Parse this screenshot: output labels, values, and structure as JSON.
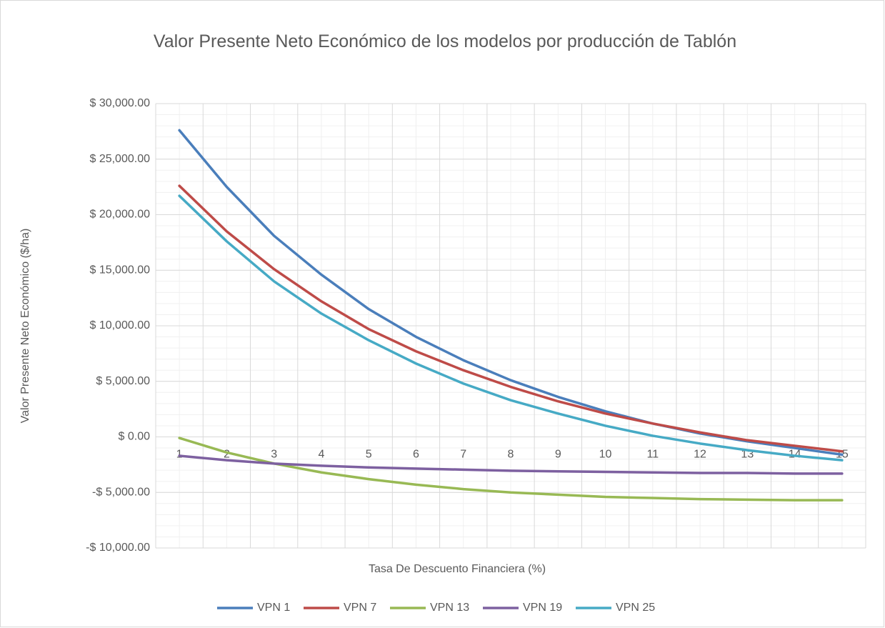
{
  "chart_data": {
    "type": "line",
    "title": "Valor Presente Neto Económico de los modelos por producción de Tablón",
    "x_label": "Tasa De Descuento Financiera (%)",
    "y_label": "Valor Presente Neto Económico ($/ha)",
    "categories": [
      "1",
      "2",
      "3",
      "4",
      "5",
      "6",
      "7",
      "8",
      "9",
      "10",
      "11",
      "12",
      "13",
      "14",
      "15"
    ],
    "ylim": [
      -10000,
      30000
    ],
    "yticks": [
      {
        "value": -10000,
        "label": "-$ 10,000.00"
      },
      {
        "value": -5000,
        "label": "-$ 5,000.00"
      },
      {
        "value": 0,
        "label": "$ 0.00"
      },
      {
        "value": 5000,
        "label": "$ 5,000.00"
      },
      {
        "value": 10000,
        "label": "$ 10,000.00"
      },
      {
        "value": 15000,
        "label": "$ 15,000.00"
      },
      {
        "value": 20000,
        "label": "$ 20,000.00"
      },
      {
        "value": 25000,
        "label": "$ 25,000.00"
      },
      {
        "value": 30000,
        "label": "$ 30,000.00"
      }
    ],
    "grid": true,
    "legend": "bottom",
    "series": [
      {
        "name": "VPN 1",
        "color": "#4a7ebb",
        "values": [
          27600,
          22500,
          18100,
          14600,
          11500,
          9000,
          6900,
          5100,
          3600,
          2300,
          1200,
          300,
          -400,
          -1000,
          -1600
        ]
      },
      {
        "name": "VPN 7",
        "color": "#be4b48",
        "values": [
          22600,
          18500,
          15100,
          12200,
          9700,
          7700,
          6000,
          4500,
          3200,
          2100,
          1200,
          400,
          -300,
          -800,
          -1300
        ]
      },
      {
        "name": "VPN 13",
        "color": "#98b954",
        "values": [
          -100,
          -1400,
          -2400,
          -3200,
          -3800,
          -4300,
          -4700,
          -5000,
          -5200,
          -5400,
          -5500,
          -5600,
          -5650,
          -5700,
          -5700
        ]
      },
      {
        "name": "VPN 19",
        "color": "#7d60a0",
        "values": [
          -1700,
          -2100,
          -2400,
          -2600,
          -2750,
          -2850,
          -2950,
          -3050,
          -3100,
          -3150,
          -3200,
          -3250,
          -3250,
          -3300,
          -3300
        ]
      },
      {
        "name": "VPN 25",
        "color": "#46aac5",
        "values": [
          21700,
          17600,
          14000,
          11100,
          8700,
          6600,
          4800,
          3300,
          2100,
          1000,
          100,
          -600,
          -1200,
          -1700,
          -2100
        ]
      }
    ]
  }
}
